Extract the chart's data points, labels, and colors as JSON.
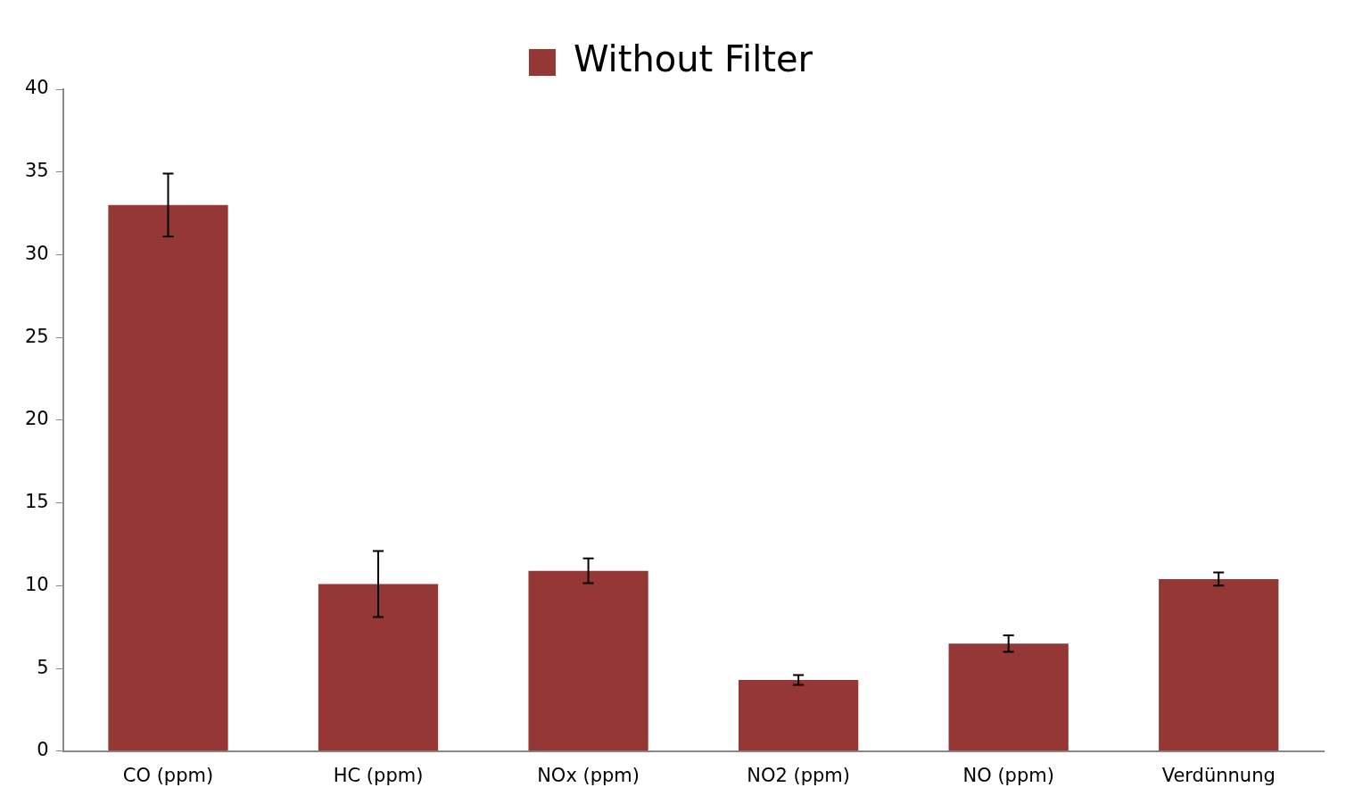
{
  "chart_data": {
    "type": "bar",
    "categories": [
      "CO (ppm)",
      "HC (ppm)",
      "NOx (ppm)",
      "NO2 (ppm)",
      "NO (ppm)",
      "Verdünnung"
    ],
    "series": [
      {
        "name": "Without Filter",
        "color": "#953735",
        "values": [
          33.0,
          10.1,
          10.9,
          4.3,
          6.5,
          10.4
        ],
        "errors": [
          1.9,
          2.0,
          0.75,
          0.3,
          0.5,
          0.4
        ]
      }
    ],
    "ylim": [
      0,
      40
    ],
    "yticks": [
      0,
      5,
      10,
      15,
      20,
      25,
      30,
      35,
      40
    ],
    "grid": false,
    "legend": "top"
  }
}
